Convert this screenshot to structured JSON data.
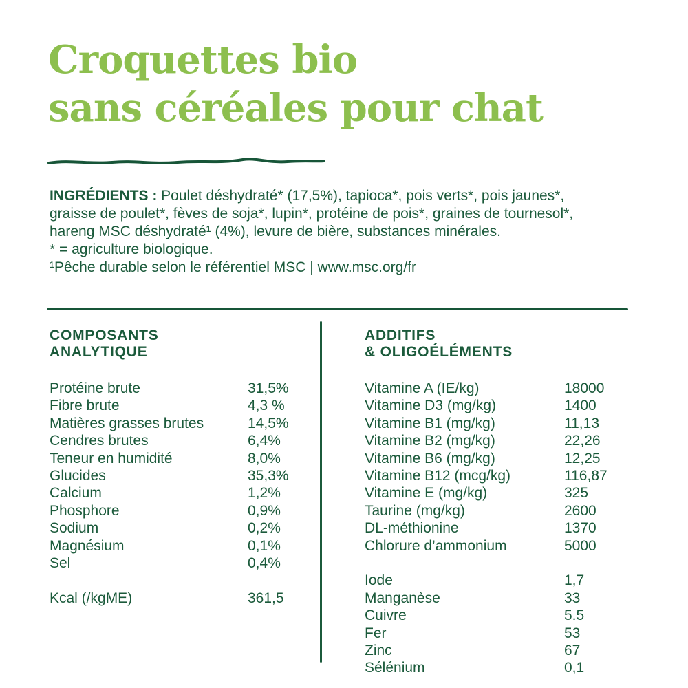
{
  "title": {
    "line1": "Croquettes bio",
    "line2": "sans céréales pour chat"
  },
  "ingredients": {
    "label": "INGRÉDIENTS :",
    "text": " Poulet déshydraté* (17,5%), tapioca*, pois verts*, pois jaunes*, graisse de poulet*, fèves de soja*, lupin*, protéine de pois*, graines de tournesol*, hareng MSC déshydraté¹ (4%), levure de bière, substances minérales.",
    "note_bio": "* = agriculture biologique.",
    "note_msc": "¹Pêche durable selon le référentiel MSC | www.msc.org/fr"
  },
  "analytical": {
    "heading_line1": "COMPOSANTS",
    "heading_line2": "ANALYTIQUE",
    "rows": [
      {
        "label": "Protéine brute",
        "value": "31,5%"
      },
      {
        "label": "Fibre brute",
        "value": "4,3 %"
      },
      {
        "label": "Matières grasses brutes",
        "value": "14,5%"
      },
      {
        "label": "Cendres brutes",
        "value": "6,4%"
      },
      {
        "label": "Teneur en humidité",
        "value": "8,0%"
      },
      {
        "label": "Glucides",
        "value": "35,3%"
      },
      {
        "label": "Calcium",
        "value": "1,2%"
      },
      {
        "label": "Phosphore",
        "value": "0,9%"
      },
      {
        "label": "Sodium",
        "value": "0,2%"
      },
      {
        "label": "Magnésium",
        "value": "0,1%"
      },
      {
        "label": "Sel",
        "value": "0,4%"
      }
    ],
    "kcal_row": {
      "label": "Kcal (/kgME)",
      "value": "361,5"
    }
  },
  "additives": {
    "heading_line1": "ADDITIFS",
    "heading_line2": "& OLIGOÉLÉMENTS",
    "vitamin_rows": [
      {
        "label": "Vitamine A (IE/kg)",
        "value": "18000"
      },
      {
        "label": "Vitamine D3 (mg/kg)",
        "value": "1400"
      },
      {
        "label": "Vitamine B1 (mg/kg)",
        "value": "11,13"
      },
      {
        "label": "Vitamine B2 (mg/kg)",
        "value": "22,26"
      },
      {
        "label": "Vitamine B6 (mg/kg)",
        "value": "12,25"
      },
      {
        "label": "Vitamine B12 (mcg/kg)",
        "value": "116,87"
      },
      {
        "label": "Vitamine E (mg/kg)",
        "value": "325"
      },
      {
        "label": "Taurine (mg/kg)",
        "value": "2600"
      },
      {
        "label": "DL-méthionine",
        "value": "1370"
      },
      {
        "label": "Chlorure d’ammonium",
        "value": "5000"
      }
    ],
    "trace_rows": [
      {
        "label": "Iode",
        "value": "1,7"
      },
      {
        "label": "Manganèse",
        "value": "33"
      },
      {
        "label": "Cuivre",
        "value": "5.5"
      },
      {
        "label": "Fer",
        "value": "53"
      },
      {
        "label": "Zinc",
        "value": "67"
      },
      {
        "label": "Sélénium",
        "value": "0,1"
      }
    ]
  },
  "colors": {
    "title_green": "#8dbf4e",
    "dark_green": "#1b5a3b"
  }
}
